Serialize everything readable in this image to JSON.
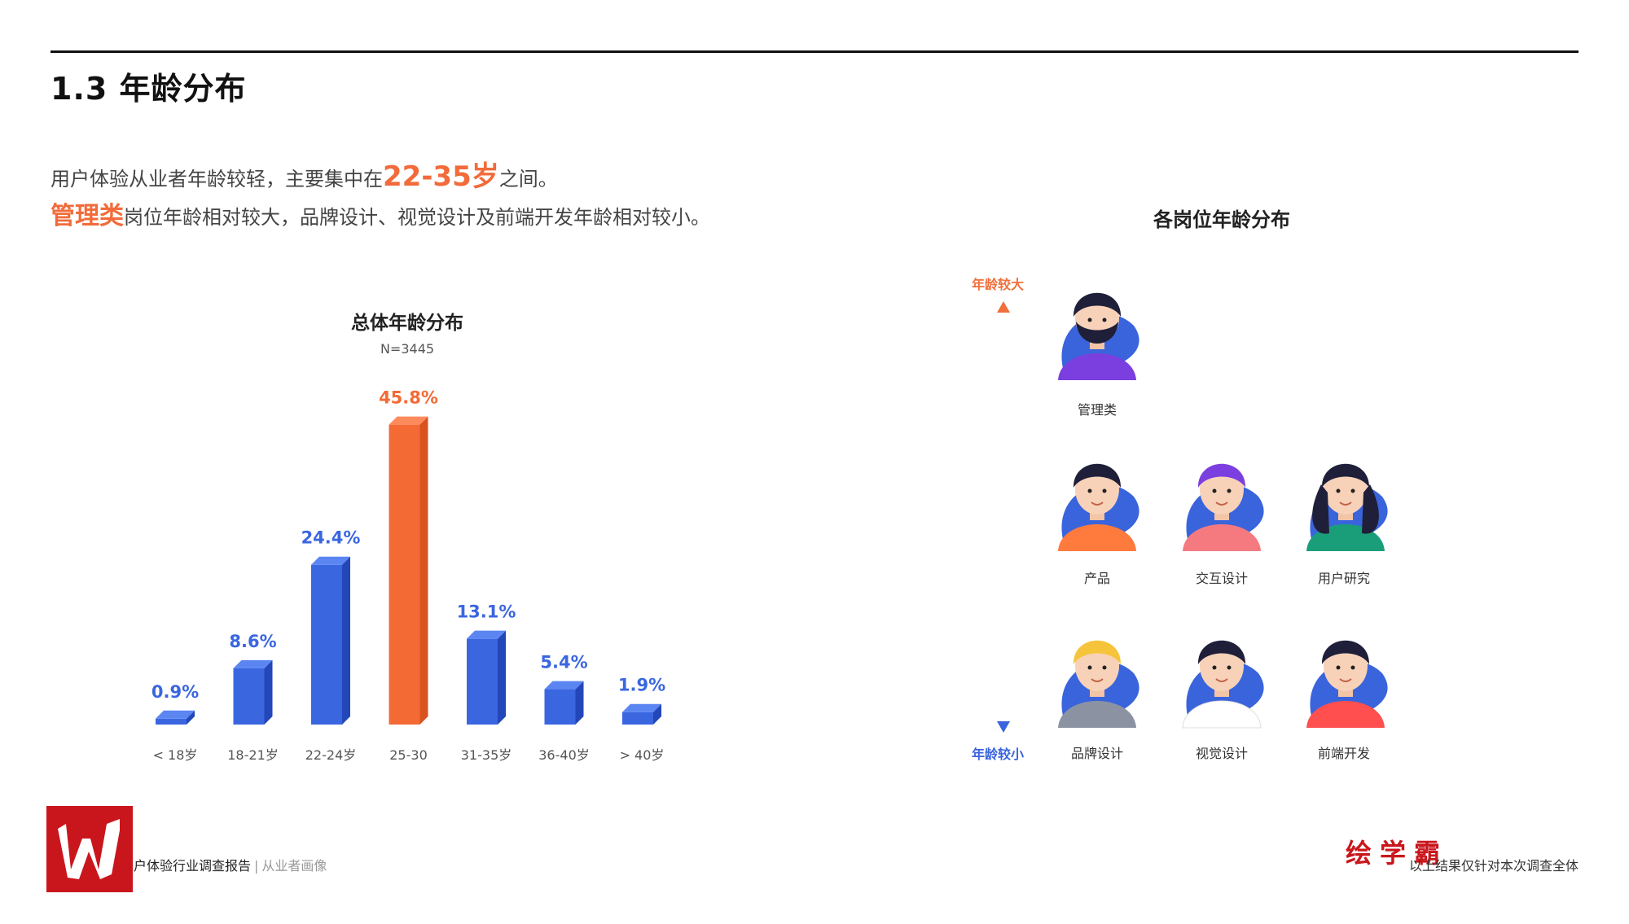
{
  "page": {
    "title": "1.3 年龄分布",
    "intro_line1_pre": "用户体验从业者年龄较轻，主要集中在",
    "intro_line1_highlight": "22-35岁",
    "intro_line1_post": "之间。",
    "intro_line2_highlight": "管理类",
    "intro_line2_post": "岗位年龄相对较大，品牌设计、视觉设计及前端开发年龄相对较小。"
  },
  "chart_data": {
    "type": "bar",
    "title": "总体年龄分布",
    "subtitle": "N=3445",
    "categories": [
      "< 18岁",
      "18-21岁",
      "22-24岁",
      "25-30",
      "31-35岁",
      "36-40岁",
      "> 40岁"
    ],
    "values": [
      0.9,
      8.6,
      24.4,
      45.8,
      13.1,
      5.4,
      1.9
    ],
    "value_labels": [
      "0.9%",
      "8.6%",
      "24.4%",
      "45.8%",
      "13.1%",
      "5.4%",
      "1.9%"
    ],
    "highlight_index": 3,
    "colors": {
      "bar": "#3a66e0",
      "bar_side": "#2346b8",
      "bar_top": "#5b86f2",
      "highlight": "#f46a35",
      "highlight_side": "#d9531f",
      "highlight_top": "#ff8a5c",
      "label": "#3a66e0",
      "highlight_label": "#f46a35"
    }
  },
  "roles": {
    "title": "各岗位年龄分布",
    "axis_older": "年龄较大",
    "axis_younger": "年龄较小",
    "items": [
      {
        "label": "管理类",
        "shirt": "#7b3fe0",
        "hair": "#1f1f3a"
      },
      {
        "label": "产品",
        "shirt": "#ff7a3d",
        "hair": "#1f1f3a"
      },
      {
        "label": "交互设计",
        "shirt": "#f47a80",
        "hair": "#7b3fe0"
      },
      {
        "label": "用户研究",
        "shirt": "#1a9e7a",
        "hair": "#1f1f3a"
      },
      {
        "label": "品牌设计",
        "shirt": "#8b93a3",
        "hair": "#f5c43a"
      },
      {
        "label": "视觉设计",
        "shirt": "#ffffff",
        "hair": "#1f1f3a"
      },
      {
        "label": "前端开发",
        "shirt": "#ff4f4f",
        "hair": "#1f1f3a"
      }
    ]
  },
  "footer": {
    "report_title": "户体验行业调查报告",
    "separator": "|",
    "section": "从业者画像",
    "brand": "绘学霸",
    "note": "以上结果仅针对本次调查全体"
  }
}
